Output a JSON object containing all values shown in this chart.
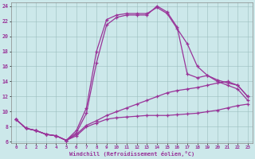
{
  "xlabel": "Windchill (Refroidissement éolien,°C)",
  "background_color": "#cce8ea",
  "line_color": "#993399",
  "xlim": [
    -0.5,
    23.5
  ],
  "ylim": [
    5.8,
    24.5
  ],
  "xticks": [
    0,
    1,
    2,
    3,
    4,
    5,
    6,
    7,
    8,
    9,
    10,
    11,
    12,
    13,
    14,
    15,
    16,
    17,
    18,
    19,
    20,
    21,
    22,
    23
  ],
  "yticks": [
    6,
    8,
    10,
    12,
    14,
    16,
    18,
    20,
    22,
    24
  ],
  "hours": [
    0,
    1,
    2,
    3,
    4,
    5,
    6,
    7,
    8,
    9,
    10,
    11,
    12,
    13,
    14,
    15,
    16,
    17,
    18,
    19,
    20,
    21,
    22,
    23
  ],
  "line1_bottom": [
    9.0,
    7.8,
    7.5,
    7.0,
    6.8,
    6.2,
    6.8,
    8.0,
    8.5,
    9.0,
    9.2,
    9.3,
    9.4,
    9.5,
    9.5,
    9.5,
    9.6,
    9.7,
    9.8,
    10.0,
    10.2,
    10.5,
    10.8,
    11.0
  ],
  "line2_diag": [
    9.0,
    7.8,
    7.5,
    7.0,
    6.8,
    6.2,
    7.0,
    8.2,
    8.8,
    9.5,
    10.0,
    10.5,
    11.0,
    11.5,
    12.0,
    12.5,
    12.8,
    13.0,
    13.2,
    13.5,
    13.8,
    14.0,
    13.5,
    12.0
  ],
  "line3_peak": [
    9.0,
    7.8,
    7.5,
    7.0,
    6.8,
    6.2,
    7.5,
    10.5,
    18.0,
    22.2,
    22.8,
    23.0,
    23.0,
    23.0,
    23.8,
    23.0,
    21.0,
    19.0,
    16.0,
    14.8,
    14.0,
    13.5,
    13.0,
    11.5
  ],
  "line4_peak2": [
    9.0,
    7.8,
    7.5,
    7.0,
    6.8,
    6.2,
    7.2,
    9.8,
    16.5,
    21.5,
    22.5,
    22.8,
    22.8,
    22.8,
    24.0,
    23.2,
    21.2,
    15.0,
    14.5,
    14.8,
    14.2,
    13.8,
    13.5,
    12.0
  ]
}
